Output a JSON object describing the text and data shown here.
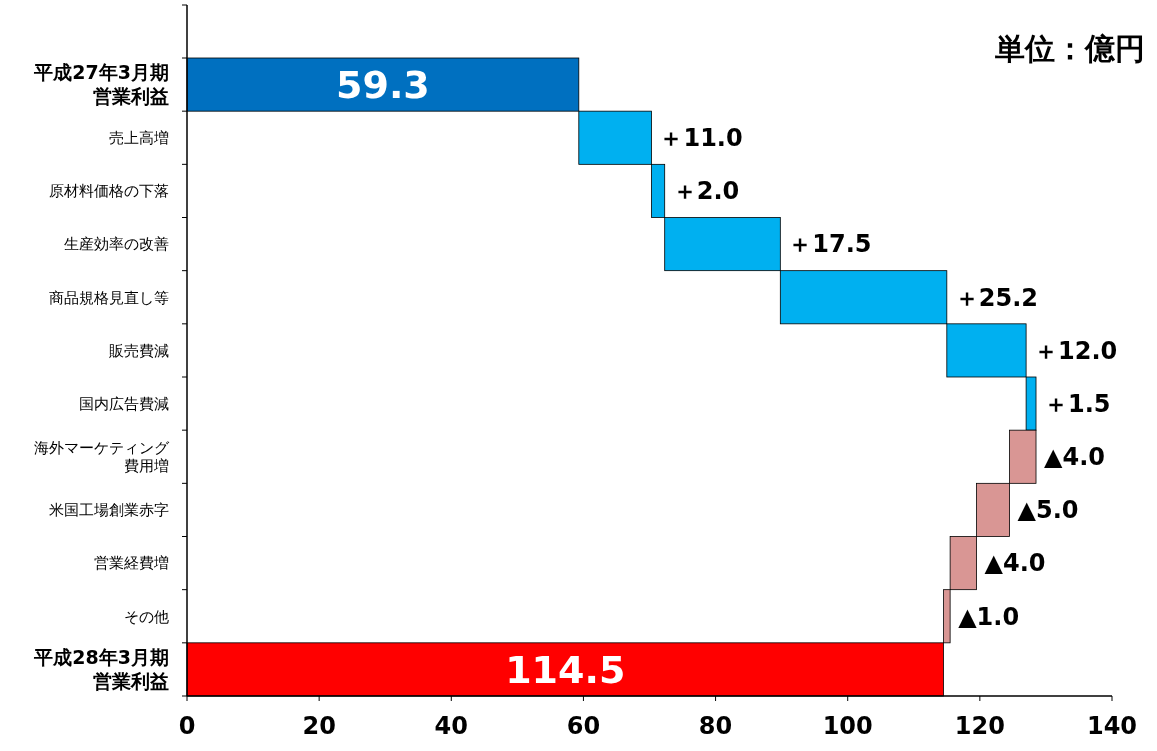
{
  "chart_data": {
    "type": "bar",
    "orientation": "horizontal",
    "categories": [
      "平成27年3月期営業利益",
      "売上高増",
      "原材料価格の下落",
      "生産効率の改善",
      "商品規格見直し等",
      "販売費減",
      "国内広告費減",
      "海外マーケティング費用増",
      "米国工場創業赤字",
      "営業経費増",
      "その他",
      "平成28年3月期営業利益"
    ],
    "values": [
      59.3,
      11.0,
      2.0,
      17.5,
      25.2,
      12.0,
      1.5,
      -4.0,
      -5.0,
      -4.0,
      -1.0,
      114.5
    ],
    "base": [
      0,
      59.3,
      70.3,
      72.3,
      89.8,
      115.0,
      127.0,
      128.5,
      124.5,
      119.5,
      115.5,
      0
    ],
    "colors": [
      "#0070c0",
      "#00b0f0",
      "#00b0f0",
      "#00b0f0",
      "#00b0f0",
      "#00b0f0",
      "#00b0f0",
      "#d99694",
      "#d99694",
      "#d99694",
      "#d99694",
      "#ff0000"
    ],
    "value_labels": [
      "59.3",
      "＋11.0",
      "＋2.0",
      "＋17.5",
      "＋25.2",
      "＋12.0",
      "＋1.5",
      "▲4.0",
      "▲5.0",
      "▲4.0",
      "▲1.0",
      "114.5"
    ],
    "xlim": [
      0,
      140
    ],
    "xticks": [
      0,
      20,
      40,
      60,
      80,
      100,
      120,
      140
    ],
    "annotations": [
      "単位：億円"
    ],
    "grid": false
  }
}
